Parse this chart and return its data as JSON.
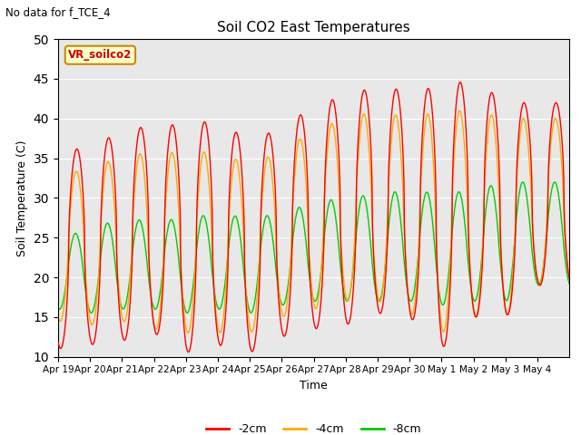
{
  "title": "Soil CO2 East Temperatures",
  "subtitle": "No data for f_TCE_4",
  "xlabel": "Time",
  "ylabel": "Soil Temperature (C)",
  "ylim": [
    10,
    50
  ],
  "legend_label": "VR_soilco2",
  "series_labels": [
    "-2cm",
    "-4cm",
    "-8cm"
  ],
  "series_colors": [
    "#ff0000",
    "#ffaa00",
    "#00cc00"
  ],
  "background_color": "#e8e8e8",
  "xtick_labels": [
    "Apr 19",
    "Apr 20",
    "Apr 21",
    "Apr 22",
    "Apr 23",
    "Apr 24",
    "Apr 25",
    "Apr 26",
    "Apr 27",
    "Apr 28",
    "Apr 29",
    "Apr 30",
    "May 1",
    "May 2",
    "May 3",
    "May 4"
  ],
  "num_days": 16,
  "red_peaks": [
    35,
    37,
    38,
    39.5,
    39,
    40,
    37,
    39,
    41.5,
    43,
    44,
    43.5,
    44,
    45,
    42,
    42
  ],
  "red_mins": [
    11,
    11.5,
    12,
    13,
    10.5,
    11.5,
    10.5,
    12.5,
    13.5,
    14,
    15.5,
    15,
    11,
    15,
    15,
    19
  ],
  "orange_peaks": [
    32.5,
    34,
    35,
    36,
    35.5,
    36,
    34,
    36,
    38.5,
    40,
    41,
    40,
    41,
    41,
    40,
    40
  ],
  "orange_mins": [
    14.5,
    14,
    14.5,
    13.5,
    13,
    13,
    13,
    15,
    16,
    17,
    17,
    15.5,
    13,
    15,
    15,
    19
  ],
  "green_peaks": [
    25,
    26,
    27.5,
    27,
    27.5,
    28,
    27.5,
    28,
    29.5,
    30,
    30.5,
    31,
    30.5,
    31,
    32,
    32
  ],
  "green_mins": [
    16,
    15.5,
    16,
    16,
    15.5,
    16,
    15.5,
    16.5,
    17,
    17,
    17,
    17,
    16.5,
    17,
    17,
    19
  ]
}
